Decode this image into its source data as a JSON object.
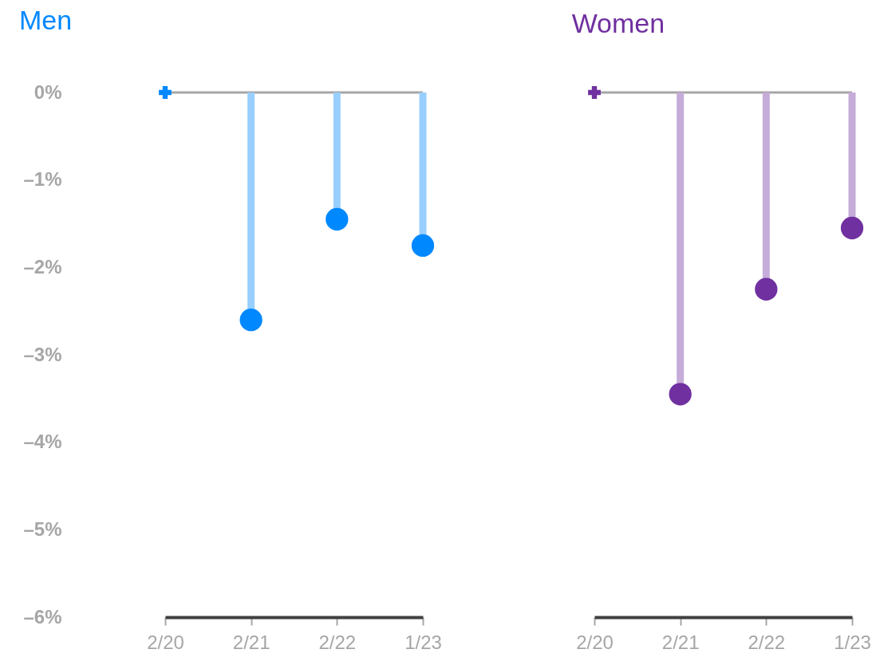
{
  "chart_data": [
    {
      "type": "lollipop",
      "title": "Men",
      "categories": [
        "2/20",
        "2/21",
        "2/22",
        "1/23"
      ],
      "series": [
        {
          "color": "#0088ff",
          "values": [
            0,
            -2.6,
            -1.45,
            -1.75
          ]
        }
      ],
      "ylim": [
        -6,
        0
      ],
      "yticks": [
        {
          "value": 0,
          "label": "0%"
        },
        {
          "value": -1,
          "label": "–1%"
        },
        {
          "value": -2,
          "label": "–2%"
        },
        {
          "value": -3,
          "label": "–3%"
        },
        {
          "value": -4,
          "label": "–4%"
        },
        {
          "value": -5,
          "label": "–5%"
        },
        {
          "value": -6,
          "label": "–6%"
        }
      ],
      "ref_lines": [
        {
          "axis": "y",
          "value": 0,
          "color": "#a6a6a6"
        }
      ]
    },
    {
      "type": "lollipop",
      "title": "Women",
      "categories": [
        "2/20",
        "2/21",
        "2/22",
        "1/23"
      ],
      "series": [
        {
          "color": "#7030a0",
          "values": [
            0,
            -3.45,
            -2.25,
            -1.55
          ]
        }
      ],
      "ylim": [
        -6,
        0
      ],
      "ref_lines": [
        {
          "axis": "y",
          "value": 0,
          "color": "#a6a6a6"
        }
      ],
      "tick_labels": "x"
    }
  ]
}
